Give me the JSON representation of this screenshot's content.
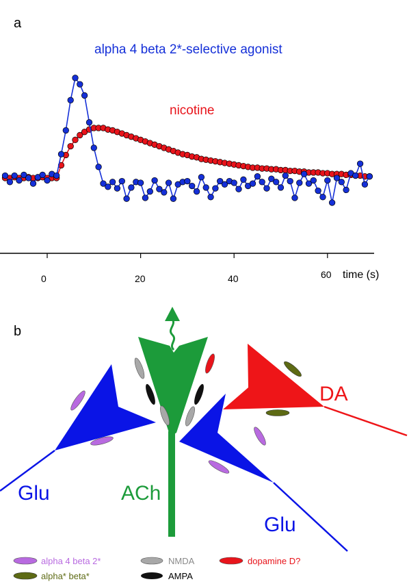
{
  "panel_a": {
    "label": "a",
    "x_axis": {
      "ticks": [
        "0",
        "20",
        "40",
        "60"
      ],
      "unit_label": "time (s)"
    },
    "annotations": {
      "agonist": "alpha 4 beta 2*-selective agonist",
      "nicotine": "nicotine"
    },
    "colors": {
      "agonist": "#1530d8",
      "nicotine": "#e8141b"
    }
  },
  "panel_b": {
    "label": "b",
    "cell_labels": {
      "glu_left": "Glu",
      "ach": "ACh",
      "da": "DA",
      "glu_right": "Glu"
    },
    "colors": {
      "glu": "#0a14e6",
      "ach": "#1c9b3a",
      "da": "#ee1518",
      "a4b2": "#b86ae0",
      "nmda": "#a8a8a8",
      "ampa": "#111111",
      "d_receptor": "#e8141b",
      "alpha_beta": "#5d6a14"
    },
    "legend": {
      "a4b2": "alpha 4 beta 2*",
      "nmda": "NMDA",
      "dopamine": "dopamine D?",
      "alpha_beta": "alpha* beta*",
      "ampa": "AMPA"
    }
  },
  "chart_data": {
    "type": "line",
    "xlabel": "time (s)",
    "xlim": [
      -9,
      70
    ],
    "x_ticks": [
      0,
      20,
      40,
      60
    ],
    "series": [
      {
        "name": "alpha 4 beta 2*-selective agonist",
        "marker": "circle",
        "x": [
          -9,
          -8,
          -7,
          -6,
          -5,
          -4,
          -3,
          -2,
          -1,
          0,
          1,
          2,
          3,
          4,
          5,
          6,
          7,
          8,
          9,
          10,
          11,
          12,
          13,
          14,
          15,
          16,
          17,
          18,
          19,
          20,
          21,
          22,
          23,
          24,
          25,
          26,
          27,
          28,
          29,
          30,
          31,
          32,
          33,
          34,
          35,
          36,
          37,
          38,
          39,
          40,
          41,
          42,
          43,
          44,
          45,
          46,
          47,
          48,
          49,
          50,
          51,
          52,
          53,
          54,
          55,
          56,
          57,
          58,
          59,
          60,
          61,
          62,
          63,
          64,
          65,
          66,
          67,
          68,
          69
        ],
        "values": [
          0.3,
          -0.5,
          0.3,
          -0.3,
          0.4,
          0.0,
          -0.7,
          0.1,
          0.4,
          -0.3,
          0.5,
          0.3,
          3.0,
          6.0,
          9.8,
          12.6,
          11.8,
          10.4,
          7.0,
          3.8,
          1.4,
          -0.7,
          -1.1,
          -0.5,
          -1.3,
          -0.4,
          -2.6,
          -1.2,
          -0.5,
          -0.6,
          -2.5,
          -1.7,
          -0.3,
          -1.4,
          -1.8,
          -0.6,
          -2.6,
          -0.8,
          -0.5,
          -0.4,
          -1.0,
          -1.7,
          0.1,
          -1.2,
          -2.4,
          -1.3,
          -0.4,
          -0.8,
          -0.4,
          -0.6,
          -1.4,
          -0.2,
          -1.0,
          -0.7,
          0.2,
          -0.5,
          -1.3,
          -0.1,
          -0.5,
          -1.2,
          0.3,
          -0.4,
          -2.5,
          -0.6,
          0.5,
          -0.7,
          -0.3,
          -1.6,
          -2.4,
          -0.3,
          -3.1,
          0.0,
          -0.5,
          -1.5,
          0.6,
          0.3,
          1.8,
          -0.8,
          0.2
        ]
      },
      {
        "name": "nicotine",
        "marker": "circle",
        "x": [
          -9,
          -8,
          -7,
          -6,
          -5,
          -4,
          -3,
          -2,
          -1,
          0,
          1,
          2,
          3,
          4,
          5,
          6,
          7,
          8,
          9,
          10,
          11,
          12,
          13,
          14,
          15,
          16,
          17,
          18,
          19,
          20,
          21,
          22,
          23,
          24,
          25,
          26,
          27,
          28,
          29,
          30,
          31,
          32,
          33,
          34,
          35,
          36,
          37,
          38,
          39,
          40,
          41,
          42,
          43,
          44,
          45,
          46,
          47,
          48,
          49,
          50,
          51,
          52,
          53,
          54,
          55,
          56,
          57,
          58,
          59,
          60,
          61,
          62,
          63,
          64,
          65,
          66,
          67,
          68,
          69
        ],
        "values": [
          0.0,
          0.0,
          0.1,
          0.0,
          0.0,
          0.1,
          0.0,
          0.0,
          0.1,
          0.0,
          0.0,
          0.0,
          1.6,
          2.9,
          4.0,
          4.8,
          5.4,
          5.8,
          6.1,
          6.3,
          6.3,
          6.3,
          6.1,
          6.0,
          5.8,
          5.6,
          5.4,
          5.2,
          5.0,
          4.8,
          4.6,
          4.4,
          4.2,
          4.0,
          3.8,
          3.6,
          3.4,
          3.2,
          3.0,
          2.9,
          2.7,
          2.6,
          2.4,
          2.3,
          2.2,
          2.1,
          2.0,
          1.9,
          1.8,
          1.7,
          1.6,
          1.5,
          1.4,
          1.3,
          1.3,
          1.2,
          1.2,
          1.1,
          1.1,
          1.0,
          1.0,
          0.9,
          0.9,
          0.8,
          0.8,
          0.7,
          0.7,
          0.7,
          0.6,
          0.6,
          0.5,
          0.5,
          0.5,
          0.4,
          0.4,
          0.3,
          0.3,
          0.2,
          0.2
        ]
      }
    ]
  }
}
